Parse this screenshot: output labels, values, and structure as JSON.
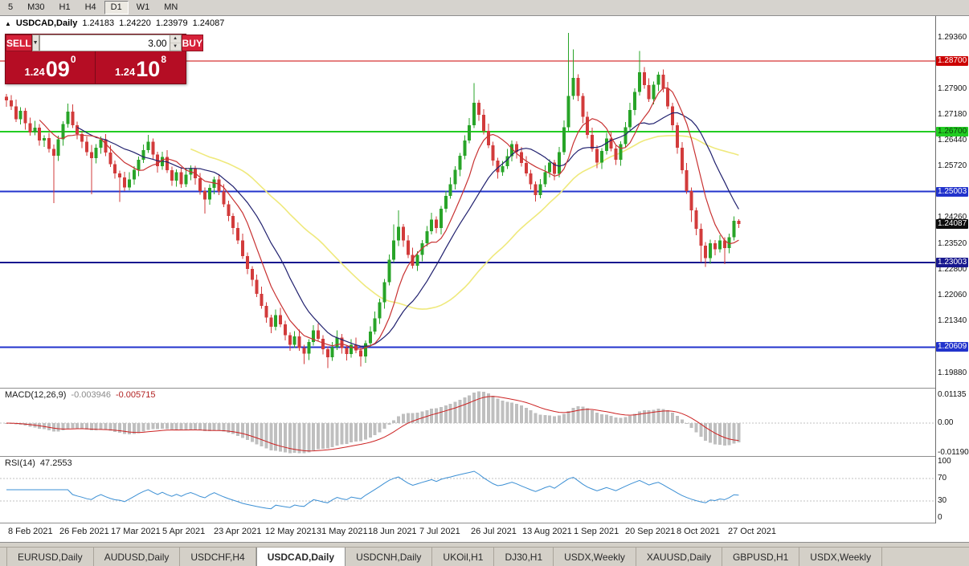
{
  "toolbar": {
    "timeframes": [
      {
        "label": "5",
        "active": false
      },
      {
        "label": "M30",
        "active": false
      },
      {
        "label": "H1",
        "active": false
      },
      {
        "label": "H4",
        "active": false
      },
      {
        "label": "D1",
        "active": true
      },
      {
        "label": "W1",
        "active": false
      },
      {
        "label": "MN",
        "active": false
      }
    ]
  },
  "chart_header": {
    "direction_icon": "▲",
    "symbol": "USDCAD,Daily",
    "open": "1.24183",
    "high": "1.24220",
    "low": "1.23979",
    "close": "1.24087"
  },
  "trade_panel": {
    "sell_label": "SELL",
    "buy_label": "BUY",
    "volume": "3.00",
    "icons": {
      "dropdown": "▼",
      "spin_up": "▲",
      "spin_down": "▼"
    },
    "sell_price": {
      "base": "1.24",
      "pips": "09",
      "pt": "0"
    },
    "buy_price": {
      "base": "1.24",
      "pips": "10",
      "pt": "8"
    }
  },
  "price_axis": {
    "ticks": [
      {
        "label": "1.29360",
        "price": 1.2936
      },
      {
        "label": "1.27900",
        "price": 1.279
      },
      {
        "label": "1.27180",
        "price": 1.2718
      },
      {
        "label": "1.26440",
        "price": 1.2644
      },
      {
        "label": "1.25720",
        "price": 1.2572
      },
      {
        "label": "1.24260",
        "price": 1.2426
      },
      {
        "label": "1.23520",
        "price": 1.2352
      },
      {
        "label": "1.22800",
        "price": 1.228
      },
      {
        "label": "1.22060",
        "price": 1.2206
      },
      {
        "label": "1.21340",
        "price": 1.2134
      },
      {
        "label": "1.19880",
        "price": 1.1988
      }
    ],
    "markers": [
      {
        "label": "1.28700",
        "price": 1.287,
        "bg": "#cc0000",
        "fg": "#ffffff"
      },
      {
        "label": "1.26700",
        "price": 1.267,
        "bg": "#22cc22",
        "fg": "#083d08"
      },
      {
        "label": "1.25003",
        "price": 1.25003,
        "bg": "#2233cc",
        "fg": "#ffffff"
      },
      {
        "label": "1.24087",
        "price": 1.24087,
        "bg": "#0d0d0d",
        "fg": "#ffffff"
      },
      {
        "label": "1.23003",
        "price": 1.23003,
        "bg": "#18188f",
        "fg": "#ffffff"
      },
      {
        "label": "1.20609",
        "price": 1.20609,
        "bg": "#2233cc",
        "fg": "#ffffff"
      }
    ]
  },
  "hlines": [
    {
      "price": 1.287,
      "color": "#cc0000",
      "width": 1
    },
    {
      "price": 1.267,
      "color": "#22cc22",
      "width": 2
    },
    {
      "price": 1.25003,
      "color": "#2233cc",
      "width": 2
    },
    {
      "price": 1.23003,
      "color": "#18188f",
      "width": 2
    },
    {
      "price": 1.20609,
      "color": "#2233cc",
      "width": 2
    }
  ],
  "macd_panel": {
    "label": "MACD(12,26,9)",
    "value_main": "-0.003946",
    "value_signal": "-0.005715",
    "axis": [
      "0.01135",
      "0.00",
      "-0.01190"
    ]
  },
  "rsi_panel": {
    "label": "RSI(14)",
    "value": "47.2553",
    "axis": [
      "100",
      "70",
      "30",
      "0"
    ],
    "levels": [
      70,
      30
    ]
  },
  "date_axis": [
    "8 Feb 2021",
    "26 Feb 2021",
    "17 Mar 2021",
    "5 Apr 2021",
    "23 Apr 2021",
    "12 May 2021",
    "31 May 2021",
    "18 Jun 2021",
    "7 Jul 2021",
    "26 Jul 2021",
    "13 Aug 2021",
    "1 Sep 2021",
    "20 Sep 2021",
    "8 Oct 2021",
    "27 Oct 2021"
  ],
  "tabs": [
    {
      "label": "EURUSD,Daily",
      "active": false
    },
    {
      "label": "AUDUSD,Daily",
      "active": false
    },
    {
      "label": "USDCHF,H4",
      "active": false
    },
    {
      "label": "USDCAD,Daily",
      "active": true
    },
    {
      "label": "USDCNH,Daily",
      "active": false
    },
    {
      "label": "UKOil,H1",
      "active": false
    },
    {
      "label": "DJ30,H1",
      "active": false
    },
    {
      "label": "USDX,Weekly",
      "active": false
    },
    {
      "label": "XAUUSD,Daily",
      "active": false
    },
    {
      "label": "GBPUSD,H1",
      "active": false
    },
    {
      "label": "USDX,Weekly",
      "active": false
    }
  ],
  "chart_data": {
    "type": "candlestick",
    "symbol": "USDCAD",
    "timeframe": "Daily",
    "price_range": [
      1.1962,
      1.2992
    ],
    "colors": {
      "bull": "#28a428",
      "bear": "#d23b3b",
      "macd_hist": "#bfbfbf",
      "macd_signal": "#cc2222",
      "rsi": "#3b8fd4"
    },
    "moving_averages": [
      {
        "period": 40,
        "color": "#efe97c",
        "width": 1.6
      },
      {
        "period": 16,
        "color": "#20206e",
        "width": 1.2
      },
      {
        "period": 8,
        "color": "#c83232",
        "width": 1.2
      }
    ],
    "indicators": {
      "macd": {
        "fast": 12,
        "slow": 26,
        "signal": 9
      },
      "rsi": {
        "period": 14
      }
    },
    "candles": [
      [
        1.2768,
        1.2776,
        1.274,
        1.2758
      ],
      [
        1.2758,
        1.2773,
        1.2731,
        1.2741
      ],
      [
        1.2741,
        1.2761,
        1.2697,
        1.2705
      ],
      [
        1.2705,
        1.2739,
        1.269,
        1.2729
      ],
      [
        1.2729,
        1.2737,
        1.2676,
        1.2694
      ],
      [
        1.2694,
        1.2709,
        1.2658,
        1.2668
      ],
      [
        1.2668,
        1.2701,
        1.266,
        1.2681
      ],
      [
        1.2681,
        1.2691,
        1.263,
        1.2645
      ],
      [
        1.2645,
        1.266,
        1.2627,
        1.2652
      ],
      [
        1.2652,
        1.2667,
        1.2611,
        1.2621
      ],
      [
        1.2621,
        1.2633,
        1.2468,
        1.2602
      ],
      [
        1.2602,
        1.2658,
        1.2587,
        1.2648
      ],
      [
        1.2648,
        1.2699,
        1.263,
        1.2691
      ],
      [
        1.2691,
        1.2749,
        1.2681,
        1.2727
      ],
      [
        1.2727,
        1.2747,
        1.268,
        1.2688
      ],
      [
        1.2688,
        1.2698,
        1.2648,
        1.2663
      ],
      [
        1.2663,
        1.2671,
        1.2623,
        1.2641
      ],
      [
        1.2641,
        1.2656,
        1.2602,
        1.2612
      ],
      [
        1.2612,
        1.2632,
        1.2493,
        1.2595
      ],
      [
        1.2595,
        1.2635,
        1.258,
        1.2625
      ],
      [
        1.2625,
        1.2656,
        1.2607,
        1.2648
      ],
      [
        1.2648,
        1.2663,
        1.2601,
        1.2611
      ],
      [
        1.2611,
        1.2631,
        1.257,
        1.2578
      ],
      [
        1.2578,
        1.2588,
        1.2537,
        1.2552
      ],
      [
        1.2552,
        1.256,
        1.2471,
        1.2541
      ],
      [
        1.2541,
        1.2556,
        1.2502,
        1.2512
      ],
      [
        1.2512,
        1.2555,
        1.2504,
        1.2535
      ],
      [
        1.2535,
        1.2572,
        1.252,
        1.2562
      ],
      [
        1.2562,
        1.2599,
        1.2544,
        1.2591
      ],
      [
        1.2591,
        1.2633,
        1.2581,
        1.2618
      ],
      [
        1.2618,
        1.2661,
        1.261,
        1.2641
      ],
      [
        1.2641,
        1.2651,
        1.259,
        1.2605
      ],
      [
        1.2605,
        1.2613,
        1.2554,
        1.2572
      ],
      [
        1.2572,
        1.2613,
        1.2562,
        1.2598
      ],
      [
        1.2598,
        1.2618,
        1.2553,
        1.2561
      ],
      [
        1.2561,
        1.2571,
        1.2517,
        1.2532
      ],
      [
        1.2532,
        1.2563,
        1.2514,
        1.2555
      ],
      [
        1.2555,
        1.257,
        1.2511,
        1.2521
      ],
      [
        1.2521,
        1.2568,
        1.2513,
        1.2548
      ],
      [
        1.2548,
        1.2575,
        1.2533,
        1.2565
      ],
      [
        1.2565,
        1.2573,
        1.252,
        1.2538
      ],
      [
        1.2538,
        1.2553,
        1.2492,
        1.2502
      ],
      [
        1.2502,
        1.2512,
        1.2438,
        1.2478
      ],
      [
        1.2478,
        1.2521,
        1.2463,
        1.2511
      ],
      [
        1.2511,
        1.2543,
        1.2493,
        1.2535
      ],
      [
        1.2535,
        1.255,
        1.2491,
        1.2501
      ],
      [
        1.2501,
        1.2521,
        1.2457,
        1.2465
      ],
      [
        1.2465,
        1.2475,
        1.2417,
        1.2432
      ],
      [
        1.2432,
        1.244,
        1.238,
        1.2398
      ],
      [
        1.2398,
        1.2413,
        1.2352,
        1.2362
      ],
      [
        1.2362,
        1.2382,
        1.231,
        1.2318
      ],
      [
        1.2318,
        1.2328,
        1.2267,
        1.2282
      ],
      [
        1.2282,
        1.229,
        1.2233,
        1.2251
      ],
      [
        1.2251,
        1.2266,
        1.2202,
        1.2212
      ],
      [
        1.2212,
        1.2232,
        1.217,
        1.2178
      ],
      [
        1.2178,
        1.2188,
        1.213,
        1.2145
      ],
      [
        1.2145,
        1.2153,
        1.21,
        1.2118
      ],
      [
        1.2118,
        1.2167,
        1.2108,
        1.2152
      ],
      [
        1.2152,
        1.2172,
        1.2117,
        1.2125
      ],
      [
        1.2125,
        1.2135,
        1.208,
        1.2095
      ],
      [
        1.2095,
        1.2103,
        1.205,
        1.2068
      ],
      [
        1.2068,
        1.2106,
        1.2058,
        1.2091
      ],
      [
        1.2091,
        1.2111,
        1.205,
        1.2058
      ],
      [
        1.2058,
        1.2068,
        1.2013,
        1.2042
      ],
      [
        1.2042,
        1.2083,
        1.2024,
        1.2075
      ],
      [
        1.2075,
        1.2123,
        1.2065,
        1.2108
      ],
      [
        1.2108,
        1.2128,
        1.2077,
        1.2085
      ],
      [
        1.2085,
        1.2095,
        1.204,
        1.2055
      ],
      [
        1.2055,
        1.2063,
        1.2002,
        1.2032
      ],
      [
        1.2032,
        1.2076,
        1.2022,
        1.2061
      ],
      [
        1.2061,
        1.2108,
        1.2053,
        1.2088
      ],
      [
        1.2088,
        1.2098,
        1.2043,
        1.2058
      ],
      [
        1.2058,
        1.2066,
        1.2023,
        1.2041
      ],
      [
        1.2041,
        1.2083,
        1.2031,
        1.2068
      ],
      [
        1.2068,
        1.2088,
        1.2044,
        1.2052
      ],
      [
        1.2052,
        1.2062,
        1.2006,
        1.2035
      ],
      [
        1.2035,
        1.208,
        1.2017,
        1.2072
      ],
      [
        1.2072,
        1.212,
        1.2062,
        1.2105
      ],
      [
        1.2105,
        1.2162,
        1.2097,
        1.2142
      ],
      [
        1.2142,
        1.2198,
        1.2127,
        1.2188
      ],
      [
        1.2188,
        1.2253,
        1.217,
        1.2245
      ],
      [
        1.2245,
        1.2323,
        1.2235,
        1.2308
      ],
      [
        1.2308,
        1.2408,
        1.23,
        1.2362
      ],
      [
        1.2362,
        1.2448,
        1.2347,
        1.2401
      ],
      [
        1.2401,
        1.2409,
        1.2344,
        1.2362
      ],
      [
        1.2362,
        1.2377,
        1.2312,
        1.2322
      ],
      [
        1.2322,
        1.2342,
        1.2283,
        1.2291
      ],
      [
        1.2291,
        1.2332,
        1.2276,
        1.2322
      ],
      [
        1.2322,
        1.2363,
        1.2304,
        1.2355
      ],
      [
        1.2355,
        1.2403,
        1.2345,
        1.2388
      ],
      [
        1.2388,
        1.2441,
        1.238,
        1.2421
      ],
      [
        1.2421,
        1.2431,
        1.2383,
        1.2398
      ],
      [
        1.2398,
        1.246,
        1.238,
        1.2452
      ],
      [
        1.2452,
        1.2503,
        1.2442,
        1.2488
      ],
      [
        1.2488,
        1.2541,
        1.248,
        1.2521
      ],
      [
        1.2521,
        1.2572,
        1.2506,
        1.2562
      ],
      [
        1.2562,
        1.261,
        1.2544,
        1.2602
      ],
      [
        1.2602,
        1.266,
        1.2592,
        1.2645
      ],
      [
        1.2645,
        1.2708,
        1.2637,
        1.2688
      ],
      [
        1.2688,
        1.2807,
        1.268,
        1.2752
      ],
      [
        1.2752,
        1.276,
        1.27,
        1.2718
      ],
      [
        1.2718,
        1.2733,
        1.2662,
        1.2672
      ],
      [
        1.2672,
        1.2692,
        1.2623,
        1.2631
      ],
      [
        1.2631,
        1.2641,
        1.2573,
        1.2588
      ],
      [
        1.2588,
        1.2596,
        1.2537,
        1.2555
      ],
      [
        1.2555,
        1.2587,
        1.2545,
        1.2572
      ],
      [
        1.2572,
        1.2621,
        1.2564,
        1.2601
      ],
      [
        1.2601,
        1.2645,
        1.2586,
        1.2635
      ],
      [
        1.2635,
        1.2643,
        1.2594,
        1.2612
      ],
      [
        1.2612,
        1.2627,
        1.2571,
        1.2581
      ],
      [
        1.2581,
        1.2601,
        1.2544,
        1.2552
      ],
      [
        1.2552,
        1.2562,
        1.2506,
        1.2521
      ],
      [
        1.2521,
        1.2529,
        1.2473,
        1.2491
      ],
      [
        1.2491,
        1.2536,
        1.2481,
        1.2521
      ],
      [
        1.2521,
        1.2575,
        1.2513,
        1.2555
      ],
      [
        1.2555,
        1.2592,
        1.254,
        1.2582
      ],
      [
        1.2582,
        1.259,
        1.2533,
        1.2551
      ],
      [
        1.2551,
        1.2627,
        1.2541,
        1.2612
      ],
      [
        1.2612,
        1.2702,
        1.2604,
        1.2682
      ],
      [
        1.2682,
        1.2949,
        1.2672,
        1.2771
      ],
      [
        1.2771,
        1.2902,
        1.2761,
        1.2822
      ],
      [
        1.2822,
        1.2832,
        1.2756,
        1.2771
      ],
      [
        1.2771,
        1.2779,
        1.2694,
        1.2712
      ],
      [
        1.2712,
        1.2727,
        1.2651,
        1.2661
      ],
      [
        1.2661,
        1.2681,
        1.2613,
        1.2621
      ],
      [
        1.2621,
        1.2631,
        1.2567,
        1.2582
      ],
      [
        1.2582,
        1.2623,
        1.2564,
        1.2615
      ],
      [
        1.2615,
        1.2666,
        1.2605,
        1.2651
      ],
      [
        1.2651,
        1.2671,
        1.2614,
        1.2622
      ],
      [
        1.2622,
        1.2632,
        1.2576,
        1.2591
      ],
      [
        1.2591,
        1.2643,
        1.2573,
        1.2635
      ],
      [
        1.2635,
        1.2697,
        1.2625,
        1.2682
      ],
      [
        1.2682,
        1.2751,
        1.2674,
        1.2731
      ],
      [
        1.2731,
        1.2792,
        1.2716,
        1.2782
      ],
      [
        1.2782,
        1.2898,
        1.2772,
        1.2838
      ],
      [
        1.2838,
        1.2853,
        1.2791,
        1.2801
      ],
      [
        1.2801,
        1.2821,
        1.2754,
        1.2762
      ],
      [
        1.2762,
        1.2812,
        1.2747,
        1.2802
      ],
      [
        1.2802,
        1.2839,
        1.2784,
        1.2831
      ],
      [
        1.2831,
        1.2846,
        1.2781,
        1.2791
      ],
      [
        1.2791,
        1.2811,
        1.2733,
        1.2741
      ],
      [
        1.2741,
        1.2751,
        1.2673,
        1.2688
      ],
      [
        1.2688,
        1.2696,
        1.2607,
        1.2625
      ],
      [
        1.2625,
        1.264,
        1.2551,
        1.2561
      ],
      [
        1.2561,
        1.2581,
        1.2494,
        1.2502
      ],
      [
        1.2502,
        1.2512,
        1.2415,
        1.2448
      ],
      [
        1.2448,
        1.2456,
        1.2377,
        1.2395
      ],
      [
        1.2395,
        1.241,
        1.2301,
        1.2348
      ],
      [
        1.2348,
        1.2358,
        1.2288,
        1.2312
      ],
      [
        1.2312,
        1.2365,
        1.2297,
        1.2355
      ],
      [
        1.2355,
        1.2363,
        1.232,
        1.2338
      ],
      [
        1.2338,
        1.2377,
        1.2328,
        1.2362
      ],
      [
        1.2362,
        1.2372,
        1.2295,
        1.2341
      ],
      [
        1.2341,
        1.2382,
        1.2326,
        1.2372
      ],
      [
        1.2372,
        1.243,
        1.2362,
        1.24183
      ],
      [
        1.24183,
        1.2422,
        1.23979,
        1.24087
      ]
    ]
  }
}
